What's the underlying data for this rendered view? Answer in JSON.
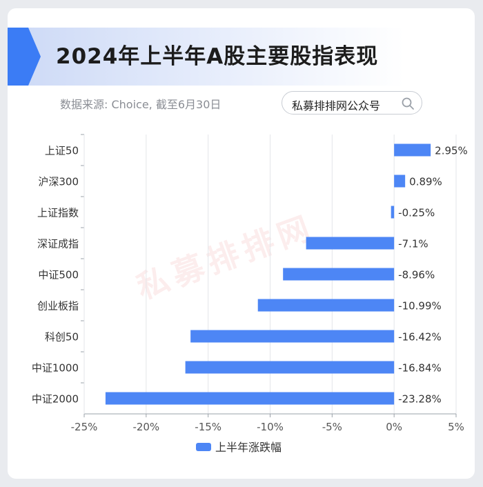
{
  "header": {
    "title": "2024年上半年A股主要股指表现",
    "source": "数据来源: Choice, 截至6月30日",
    "search_label": "私募排排网公众号"
  },
  "watermark": "私募排排网",
  "colors": {
    "bar": "#4d86f5",
    "accent": "#3b7cf5",
    "grid": "#e3e5e9",
    "axis": "#9aa0a8",
    "text": "#333333"
  },
  "chart_data": {
    "type": "bar",
    "orientation": "horizontal",
    "categories": [
      "上证50",
      "沪深300",
      "上证指数",
      "深证成指",
      "中证500",
      "创业板指",
      "科创50",
      "中证1000",
      "中证2000"
    ],
    "series": [
      {
        "name": "上半年涨跌幅",
        "values": [
          2.95,
          0.89,
          -0.25,
          -7.1,
          -8.96,
          -10.99,
          -16.42,
          -16.84,
          -23.28
        ]
      }
    ],
    "data_labels": [
      "2.95%",
      "0.89%",
      "-0.25%",
      "-7.1%",
      "-8.96%",
      "-10.99%",
      "-16.42%",
      "-16.84%",
      "-23.28%"
    ],
    "xlim": [
      -25,
      5
    ],
    "x_ticks": [
      -25,
      -20,
      -15,
      -10,
      -5,
      0,
      5
    ],
    "x_tick_labels": [
      "-25%",
      "-20%",
      "-15%",
      "-10%",
      "-5%",
      "0%",
      "5%"
    ],
    "grid": true,
    "legend_position": "bottom"
  }
}
